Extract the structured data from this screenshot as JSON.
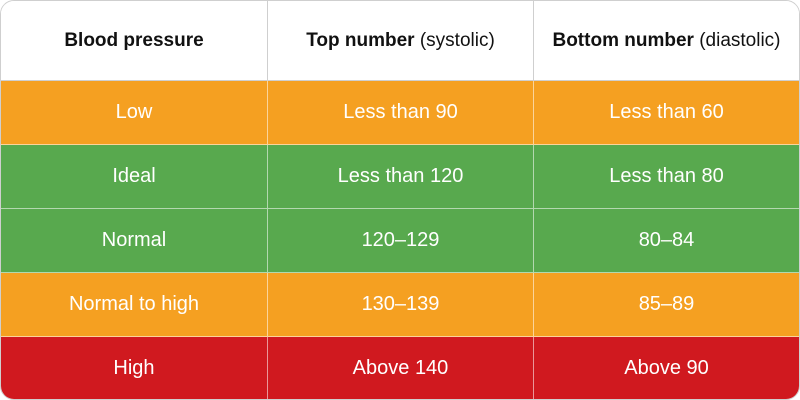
{
  "header": {
    "col1": "Blood pressure",
    "col2_bold": "Top number",
    "col2_light": "(systolic)",
    "col3_bold": "Bottom number",
    "col3_light": "(diastolic)"
  },
  "rows": [
    {
      "category": "Low",
      "systolic": "Less than 90",
      "diastolic": "Less than 60",
      "color": "#F5A021"
    },
    {
      "category": "Ideal",
      "systolic": "Less than 120",
      "diastolic": "Less than 80",
      "color": "#58A94E"
    },
    {
      "category": "Normal",
      "systolic": "120–129",
      "diastolic": "80–84",
      "color": "#58A94E"
    },
    {
      "category": "Normal to high",
      "systolic": "130–139",
      "diastolic": "85–89",
      "color": "#F5A021"
    },
    {
      "category": "High",
      "systolic": "Above 140",
      "diastolic": "Above 90",
      "color": "#D0191F"
    }
  ]
}
